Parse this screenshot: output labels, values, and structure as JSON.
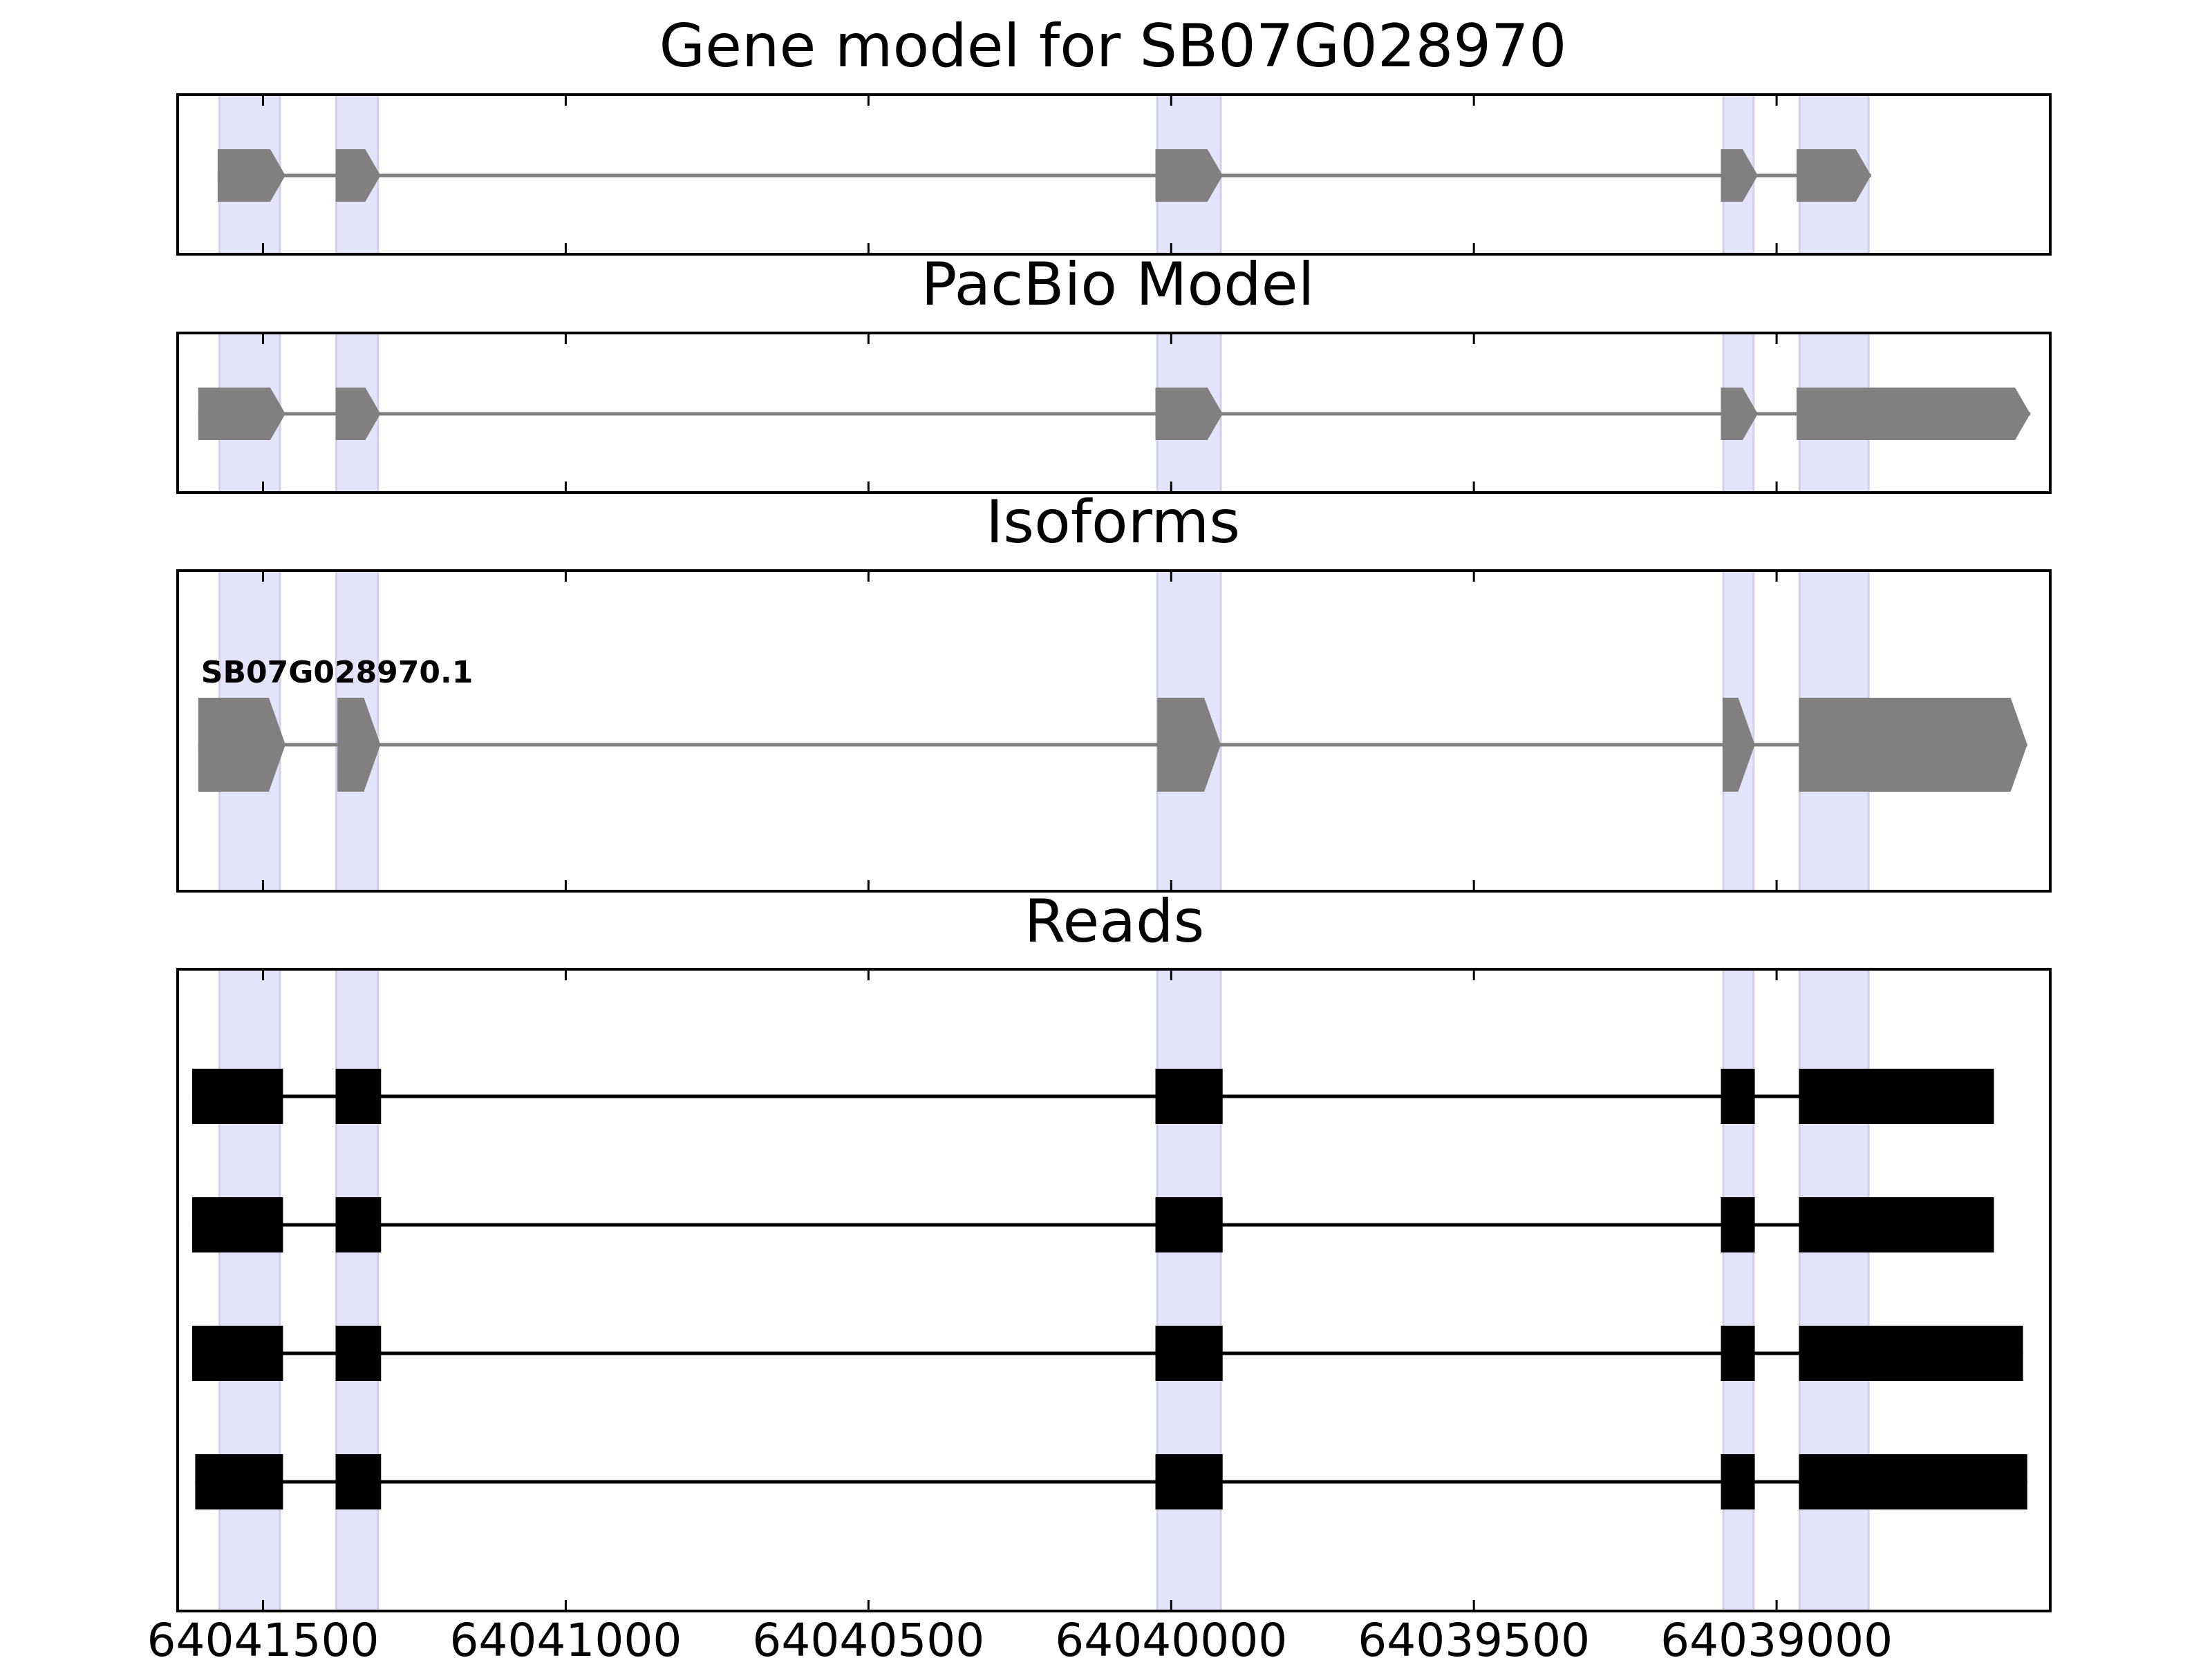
{
  "chart_data": {
    "type": "gene_model_tracks",
    "x_axis": {
      "ticks": [
        64041500,
        64041000,
        64040500,
        64040000,
        64039500,
        64039000
      ],
      "tick_labels": [
        "64041500",
        "64041000",
        "64040500",
        "64040000",
        "64039500",
        "64039000"
      ],
      "xlim": [
        64041641,
        64038548
      ],
      "reversed": true
    },
    "highlight_color": "#e3e3fa",
    "highlight_bands": [
      [
        64041572,
        64041472
      ],
      [
        64041379,
        64041310
      ],
      [
        64040023,
        64039918
      ],
      [
        64039088,
        64039038
      ],
      [
        64038962,
        64038848
      ]
    ],
    "tracks": [
      {
        "title": "Gene model for SB07G028970",
        "kind": "gene",
        "color": "#808080",
        "features": [
          {
            "exons": [
              [
                64041575,
                64041463
              ],
              [
                64041380,
                64041306
              ],
              [
                64040026,
                64039915
              ],
              [
                64039092,
                64039031
              ],
              [
                64038967,
                64038844
              ]
            ]
          }
        ]
      },
      {
        "title": "PacBio Model",
        "kind": "gene",
        "color": "#808080",
        "features": [
          {
            "exons": [
              [
                64041607,
                64041463
              ],
              [
                64041380,
                64041306
              ],
              [
                64040026,
                64039915
              ],
              [
                64039092,
                64039031
              ],
              [
                64038967,
                64038581
              ]
            ]
          }
        ]
      },
      {
        "title": "Isoforms",
        "kind": "gene",
        "color": "#808080",
        "features": [
          {
            "label": "SB07G028970.1",
            "exons": [
              [
                64041607,
                64041463
              ],
              [
                64041377,
                64041306
              ],
              [
                64040023,
                64039918
              ],
              [
                64039089,
                64039036
              ],
              [
                64038963,
                64038586
              ]
            ]
          }
        ]
      },
      {
        "title": "Reads",
        "kind": "reads",
        "color": "#000000",
        "features": [
          {
            "exons": [
              [
                64041617,
                64041467
              ],
              [
                64041380,
                64041305
              ],
              [
                64040026,
                64039915
              ],
              [
                64039092,
                64039036
              ],
              [
                64038963,
                64038641
              ]
            ]
          },
          {
            "exons": [
              [
                64041617,
                64041467
              ],
              [
                64041380,
                64041305
              ],
              [
                64040026,
                64039915
              ],
              [
                64039092,
                64039036
              ],
              [
                64038963,
                64038641
              ]
            ]
          },
          {
            "exons": [
              [
                64041617,
                64041467
              ],
              [
                64041380,
                64041305
              ],
              [
                64040026,
                64039915
              ],
              [
                64039092,
                64039036
              ],
              [
                64038963,
                64038593
              ]
            ]
          },
          {
            "exons": [
              [
                64041612,
                64041467
              ],
              [
                64041380,
                64041305
              ],
              [
                64040026,
                64039915
              ],
              [
                64039092,
                64039036
              ],
              [
                64038963,
                64038586
              ]
            ]
          }
        ]
      }
    ]
  }
}
